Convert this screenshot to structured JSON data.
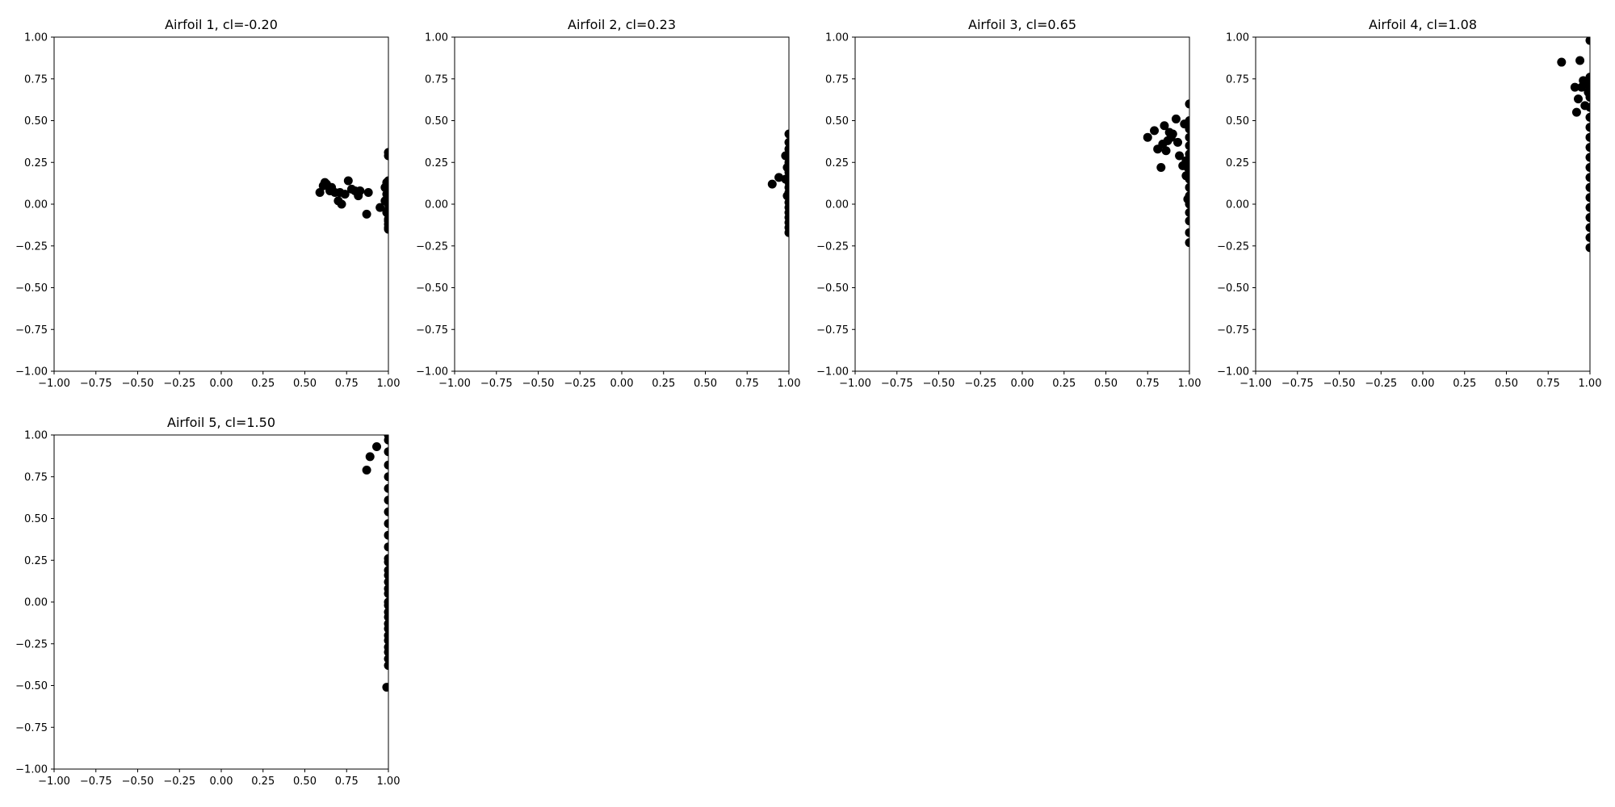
{
  "chart_data": [
    {
      "type": "scatter",
      "title": "Airfoil 1, cl=-0.20",
      "xlim": [
        -1.0,
        1.0
      ],
      "ylim": [
        -1.0,
        1.0
      ],
      "xticks": [
        "−1.00",
        "−0.75",
        "−0.50",
        "−0.25",
        "0.00",
        "0.25",
        "0.50",
        "0.75",
        "1.00"
      ],
      "yticks": [
        "−1.00",
        "−0.75",
        "−0.50",
        "−0.25",
        "0.00",
        "0.25",
        "0.50",
        "0.75",
        "1.00"
      ],
      "grid": false,
      "series": [
        {
          "color": "#000000",
          "x": [
            0.59,
            0.61,
            0.62,
            0.63,
            0.65,
            0.66,
            0.68,
            0.7,
            0.71,
            0.72,
            0.74,
            0.76,
            0.78,
            0.8,
            0.82,
            0.83,
            0.87,
            0.88,
            0.95,
            0.98,
            0.98,
            0.99,
            0.99,
            0.99,
            1.0,
            1.0,
            1.0,
            1.0,
            1.0,
            1.0,
            1.0,
            1.0,
            1.0,
            1.0,
            1.0,
            1.0,
            1.0,
            1.0,
            1.0,
            1.0,
            1.0
          ],
          "y": [
            0.07,
            0.11,
            0.13,
            0.12,
            0.08,
            0.1,
            0.07,
            0.02,
            0.07,
            0.0,
            0.06,
            0.14,
            0.09,
            0.08,
            0.05,
            0.08,
            -0.06,
            0.07,
            -0.02,
            0.1,
            0.02,
            0.06,
            -0.05,
            0.13,
            -0.15,
            -0.12,
            -0.09,
            -0.06,
            -0.03,
            0.0,
            0.03,
            0.05,
            0.08,
            0.11,
            0.14,
            0.29,
            0.31,
            -0.1,
            0.01,
            0.12,
            -0.14
          ]
        }
      ]
    },
    {
      "type": "scatter",
      "title": "Airfoil 2, cl=0.23",
      "xlim": [
        -1.0,
        1.0
      ],
      "ylim": [
        -1.0,
        1.0
      ],
      "xticks": [
        "−1.00",
        "−0.75",
        "−0.50",
        "−0.25",
        "0.00",
        "0.25",
        "0.50",
        "0.75",
        "1.00"
      ],
      "yticks": [
        "−1.00",
        "−0.75",
        "−0.50",
        "−0.25",
        "0.00",
        "0.25",
        "0.50",
        "0.75",
        "1.00"
      ],
      "grid": false,
      "series": [
        {
          "color": "#000000",
          "x": [
            0.9,
            0.94,
            0.98,
            0.98,
            0.99,
            0.99,
            1.0,
            1.0,
            1.0,
            1.0,
            1.0,
            1.0,
            1.0,
            1.0,
            1.0,
            1.0,
            1.0,
            1.0,
            1.0,
            1.0,
            1.0,
            1.0,
            1.0,
            1.0,
            1.0
          ],
          "y": [
            0.12,
            0.16,
            0.15,
            0.29,
            0.05,
            0.22,
            -0.17,
            -0.14,
            -0.11,
            -0.08,
            -0.05,
            -0.02,
            0.01,
            0.04,
            0.07,
            0.1,
            0.13,
            0.16,
            0.19,
            0.22,
            0.25,
            0.29,
            0.33,
            0.37,
            0.42
          ]
        }
      ]
    },
    {
      "type": "scatter",
      "title": "Airfoil 3, cl=0.65",
      "xlim": [
        -1.0,
        1.0
      ],
      "ylim": [
        -1.0,
        1.0
      ],
      "xticks": [
        "−1.00",
        "−0.75",
        "−0.50",
        "−0.25",
        "0.00",
        "0.25",
        "0.50",
        "0.75",
        "1.00"
      ],
      "yticks": [
        "−1.00",
        "−0.75",
        "−0.50",
        "−0.25",
        "0.00",
        "0.25",
        "0.50",
        "0.75",
        "1.00"
      ],
      "grid": false,
      "series": [
        {
          "color": "#000000",
          "x": [
            0.75,
            0.79,
            0.81,
            0.83,
            0.84,
            0.85,
            0.86,
            0.87,
            0.88,
            0.89,
            0.9,
            0.92,
            0.93,
            0.94,
            0.96,
            0.97,
            0.98,
            0.98,
            0.99,
            0.99,
            1.0,
            1.0,
            1.0,
            1.0,
            1.0,
            1.0,
            1.0,
            1.0,
            1.0,
            1.0,
            1.0,
            1.0,
            1.0,
            1.0,
            1.0,
            1.0
          ],
          "y": [
            0.4,
            0.44,
            0.33,
            0.22,
            0.36,
            0.47,
            0.32,
            0.38,
            0.43,
            0.4,
            0.42,
            0.51,
            0.37,
            0.29,
            0.23,
            0.48,
            0.26,
            0.17,
            0.03,
            0.22,
            -0.23,
            -0.17,
            -0.1,
            -0.05,
            0.0,
            0.05,
            0.1,
            0.15,
            0.2,
            0.25,
            0.3,
            0.35,
            0.4,
            0.45,
            0.5,
            0.6
          ]
        }
      ]
    },
    {
      "type": "scatter",
      "title": "Airfoil 4, cl=1.08",
      "xlim": [
        -1.0,
        1.0
      ],
      "ylim": [
        -1.0,
        1.0
      ],
      "xticks": [
        "−1.00",
        "−0.75",
        "−0.50",
        "−0.25",
        "0.00",
        "0.25",
        "0.50",
        "0.75",
        "1.00"
      ],
      "yticks": [
        "−1.00",
        "−0.75",
        "−0.50",
        "−0.25",
        "0.00",
        "0.25",
        "0.50",
        "0.75",
        "1.00"
      ],
      "grid": false,
      "series": [
        {
          "color": "#000000",
          "x": [
            0.83,
            0.91,
            0.92,
            0.93,
            0.94,
            0.95,
            0.96,
            0.97,
            0.98,
            0.99,
            1.0,
            1.0,
            1.0,
            1.0,
            1.0,
            1.0,
            1.0,
            1.0,
            1.0,
            1.0,
            1.0,
            1.0,
            1.0,
            1.0,
            1.0,
            1.0,
            1.0,
            1.0,
            1.0
          ],
          "y": [
            0.85,
            0.7,
            0.55,
            0.63,
            0.86,
            0.7,
            0.74,
            0.59,
            0.72,
            0.67,
            -0.26,
            -0.2,
            -0.14,
            -0.08,
            -0.02,
            0.04,
            0.1,
            0.16,
            0.22,
            0.28,
            0.34,
            0.4,
            0.46,
            0.52,
            0.58,
            0.64,
            0.7,
            0.76,
            0.98
          ]
        }
      ]
    },
    {
      "type": "scatter",
      "title": "Airfoil 5, cl=1.50",
      "xlim": [
        -1.0,
        1.0
      ],
      "ylim": [
        -1.0,
        1.0
      ],
      "xticks": [
        "−1.00",
        "−0.75",
        "−0.50",
        "−0.25",
        "0.00",
        "0.25",
        "0.50",
        "0.75",
        "1.00"
      ],
      "yticks": [
        "−1.00",
        "−0.75",
        "−0.50",
        "−0.25",
        "0.00",
        "0.25",
        "0.50",
        "0.75",
        "1.00"
      ],
      "grid": false,
      "series": [
        {
          "color": "#000000",
          "x": [
            0.87,
            0.89,
            0.93,
            0.99,
            1.0,
            1.0,
            1.0,
            1.0,
            1.0,
            1.0,
            1.0,
            1.0,
            1.0,
            1.0,
            1.0,
            1.0,
            1.0,
            1.0,
            1.0,
            1.0,
            1.0,
            1.0,
            1.0,
            1.0,
            1.0,
            1.0,
            1.0,
            1.0,
            1.0,
            1.0,
            1.0,
            1.0,
            1.0,
            1.0
          ],
          "y": [
            0.79,
            0.87,
            0.93,
            -0.51,
            -0.38,
            -0.3,
            -0.23,
            -0.16,
            -0.09,
            -0.02,
            0.05,
            0.12,
            0.19,
            0.26,
            0.33,
            0.4,
            0.47,
            0.54,
            0.61,
            0.68,
            0.75,
            0.82,
            0.9,
            0.97,
            1.0,
            -0.34,
            -0.27,
            -0.2,
            -0.13,
            -0.06,
            0.0,
            0.08,
            0.16,
            0.24
          ]
        }
      ]
    }
  ]
}
